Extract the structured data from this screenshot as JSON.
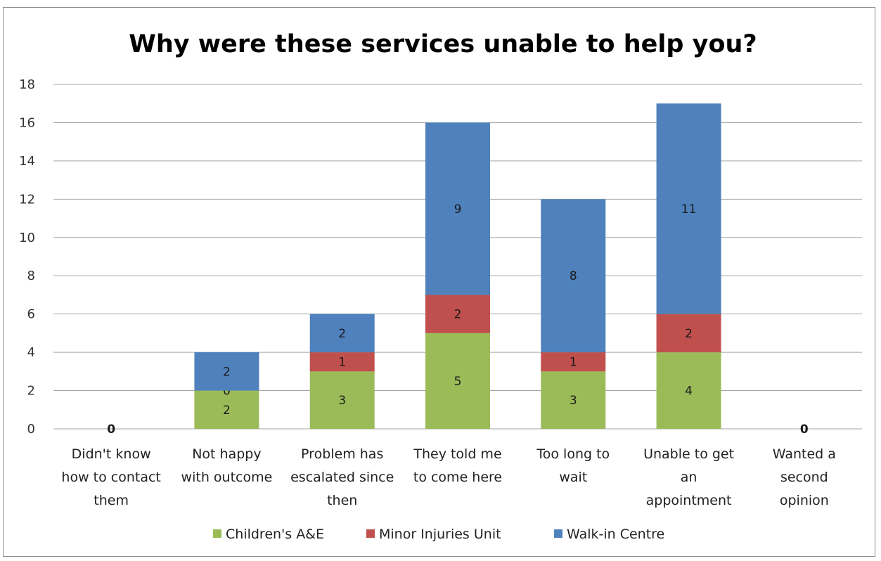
{
  "chart_data": {
    "type": "bar",
    "stacked": true,
    "title": "Why were these services unable to help you?",
    "categories": [
      [
        "Didn't know",
        "how to contact",
        "them"
      ],
      [
        "Not happy",
        "with outcome"
      ],
      [
        "Problem has",
        "escalated since",
        "then"
      ],
      [
        "They told me",
        "to come here"
      ],
      [
        "Too long to",
        "wait"
      ],
      [
        "Unable to get",
        "an",
        "appointment"
      ],
      [
        "Wanted a",
        "second",
        "opinion"
      ]
    ],
    "series": [
      {
        "name": "Children's A&E",
        "color": "#9bbb59",
        "values": [
          null,
          2,
          3,
          5,
          3,
          4,
          null
        ]
      },
      {
        "name": "Minor Injuries Unit",
        "color": "#c0504d",
        "values": [
          null,
          0,
          1,
          2,
          1,
          2,
          null
        ]
      },
      {
        "name": "Walk-in Centre",
        "color": "#4f81bd",
        "values": [
          null,
          2,
          2,
          9,
          8,
          11,
          null
        ]
      }
    ],
    "zero_labels": [
      "0",
      null,
      null,
      null,
      null,
      null,
      "0"
    ],
    "ylim": [
      0,
      18
    ],
    "yticks": [
      0,
      2,
      4,
      6,
      8,
      10,
      12,
      14,
      16,
      18
    ],
    "grid": true,
    "legend_position": "bottom"
  }
}
